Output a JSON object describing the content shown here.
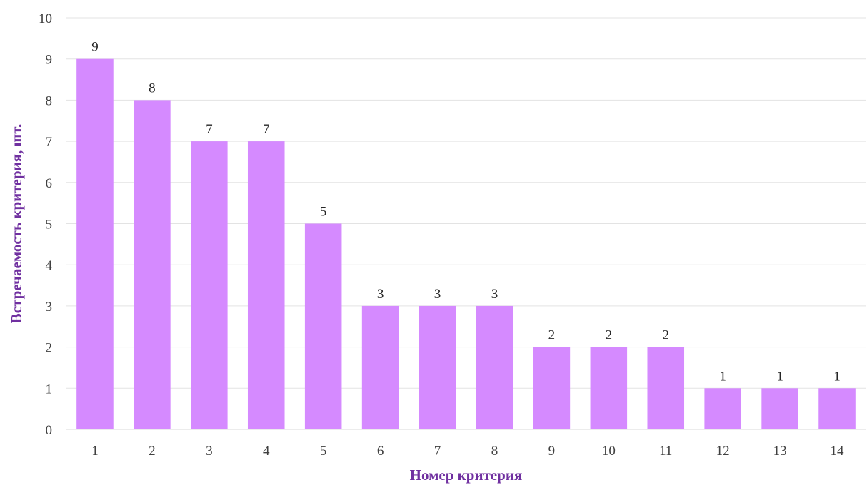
{
  "chart_data": {
    "type": "bar",
    "title": "",
    "xlabel": "Номер критерия",
    "ylabel": "Встречаемость критерия, шт.",
    "categories": [
      "1",
      "2",
      "3",
      "4",
      "5",
      "6",
      "7",
      "8",
      "9",
      "10",
      "11",
      "12",
      "13",
      "14"
    ],
    "values": [
      9,
      8,
      7,
      7,
      5,
      3,
      3,
      3,
      2,
      2,
      2,
      1,
      1,
      1
    ],
    "ylim": [
      0,
      10
    ],
    "yticks": [
      "0",
      "1",
      "2",
      "3",
      "4",
      "5",
      "6",
      "7",
      "8",
      "9",
      "10"
    ],
    "data_labels": [
      "9",
      "8",
      "7",
      "7",
      "5",
      "3",
      "3",
      "3",
      "2",
      "2",
      "2",
      "1",
      "1",
      "1"
    ],
    "grid": true,
    "legend": "none"
  },
  "colors": {
    "bar": "#d58aff",
    "axis_title": "#7030a0",
    "gridline": "#e3e3e3",
    "baseline": "#d9d9d9"
  }
}
